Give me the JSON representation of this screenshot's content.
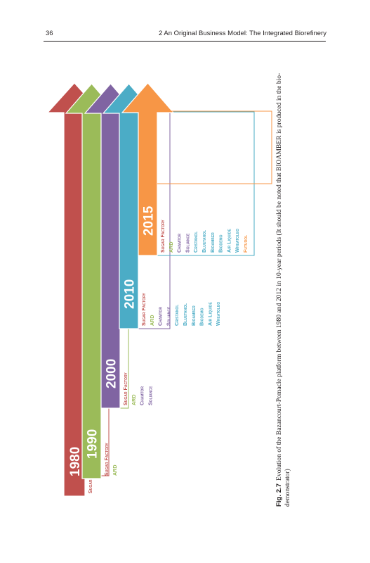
{
  "header": {
    "page_number": "36",
    "chapter_title": "2   An Original Business Model: The Integrated Biorefinery"
  },
  "colors": {
    "y1980": "#c0504d",
    "y1990": "#9bbb59",
    "y2000": "#8064a2",
    "y2010": "#4bacc6",
    "y2015": "#f79646",
    "sugar_factory": "#c0504d",
    "ard": "#9bbb59",
    "chamtor_soliance": "#8064a2",
    "y2010_companies": "#4bacc6",
    "futurol": "#f79646"
  },
  "periods": [
    {
      "year": "1980",
      "color_key": "y1980",
      "companies": [
        {
          "name": "Sugar Factory",
          "color_key": "sugar_factory"
        }
      ]
    },
    {
      "year": "1990",
      "color_key": "y1990",
      "companies": [
        {
          "name": "Sugar Factory",
          "color_key": "sugar_factory"
        },
        {
          "name": "ARD",
          "color_key": "ard"
        }
      ]
    },
    {
      "year": "2000",
      "color_key": "y2000",
      "companies": [
        {
          "name": "Sugar Factory",
          "color_key": "sugar_factory"
        },
        {
          "name": "ARD",
          "color_key": "ard"
        },
        {
          "name": "Chamtor",
          "color_key": "chamtor_soliance"
        },
        {
          "name": "Soliance",
          "color_key": "chamtor_soliance"
        }
      ]
    },
    {
      "year": "2010",
      "color_key": "y2010",
      "companies": [
        {
          "name": "Sugar Factory",
          "color_key": "sugar_factory"
        },
        {
          "name": "ARD",
          "color_key": "ard"
        },
        {
          "name": "Chamtor",
          "color_key": "chamtor_soliance"
        },
        {
          "name": "Soliance",
          "color_key": "chamtor_soliance"
        },
        {
          "name": "Cristanol",
          "color_key": "y2010_companies"
        },
        {
          "name": "Bluetanol",
          "color_key": "y2010_companies"
        },
        {
          "name": "Bioamber",
          "color_key": "y2010_companies"
        },
        {
          "name": "Biodemo",
          "color_key": "y2010_companies"
        },
        {
          "name": "Air Liquide",
          "color_key": "y2010_companies"
        },
        {
          "name": "Wheatoleo",
          "color_key": "y2010_companies"
        }
      ]
    },
    {
      "year": "2015",
      "color_key": "y2015",
      "companies": [
        {
          "name": "Sugar Factory",
          "color_key": "sugar_factory"
        },
        {
          "name": "ARD",
          "color_key": "ard"
        },
        {
          "name": "Chamtor",
          "color_key": "chamtor_soliance"
        },
        {
          "name": "Soliance",
          "color_key": "chamtor_soliance"
        },
        {
          "name": "Cristanol",
          "color_key": "y2010_companies"
        },
        {
          "name": "Bluetanol",
          "color_key": "y2010_companies"
        },
        {
          "name": "Bioamber",
          "color_key": "y2010_companies"
        },
        {
          "name": "Biodemo",
          "color_key": "y2010_companies"
        },
        {
          "name": "Air Liquide",
          "color_key": "y2010_companies"
        },
        {
          "name": "Wheatoleo",
          "color_key": "y2010_companies"
        },
        {
          "name": "Futurol",
          "color_key": "futurol"
        }
      ]
    }
  ],
  "caption": {
    "label": "Fig. 2.7",
    "text": "Evolution of the Bazancourt-Pomacle platform between 1980 and 2012 in 10-year periods (It should be noted that BIOAMBER is produced in the bio-demonstrator)"
  }
}
